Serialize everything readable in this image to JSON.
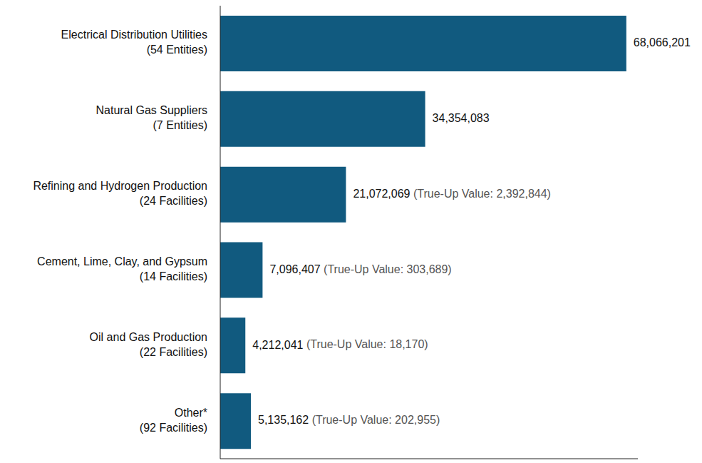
{
  "chart_data": {
    "type": "bar",
    "orientation": "horizontal",
    "categories": [
      "Electrical Distribution Utilities\n(54 Entities)",
      "Natural Gas Suppliers\n(7 Entities)",
      "Refining and Hydrogen Production\n(24 Facilities)",
      "Cement, Lime, Clay, and Gypsum\n(14 Facilities)",
      "Oil and Gas Production\n(22 Facilities)",
      "Other*\n(92 Facilities)"
    ],
    "values": [
      68066201,
      34354083,
      21072069,
      7096407,
      4212041,
      5135162
    ],
    "value_labels": [
      "68,066,201",
      "34,354,083",
      "21,072,069",
      "7,096,407",
      "4,212,041",
      "5,135,162"
    ],
    "annotations": [
      null,
      null,
      "(True-Up Value: 2,392,844)",
      "(True-Up Value: 303,689)",
      "(True-Up Value: 18,170)",
      "(True-Up Value: 202,955)"
    ],
    "color": "#115a7f",
    "xlim": [
      0,
      70000000
    ],
    "data_labels": true,
    "tick_labels": "y",
    "grid": false
  }
}
